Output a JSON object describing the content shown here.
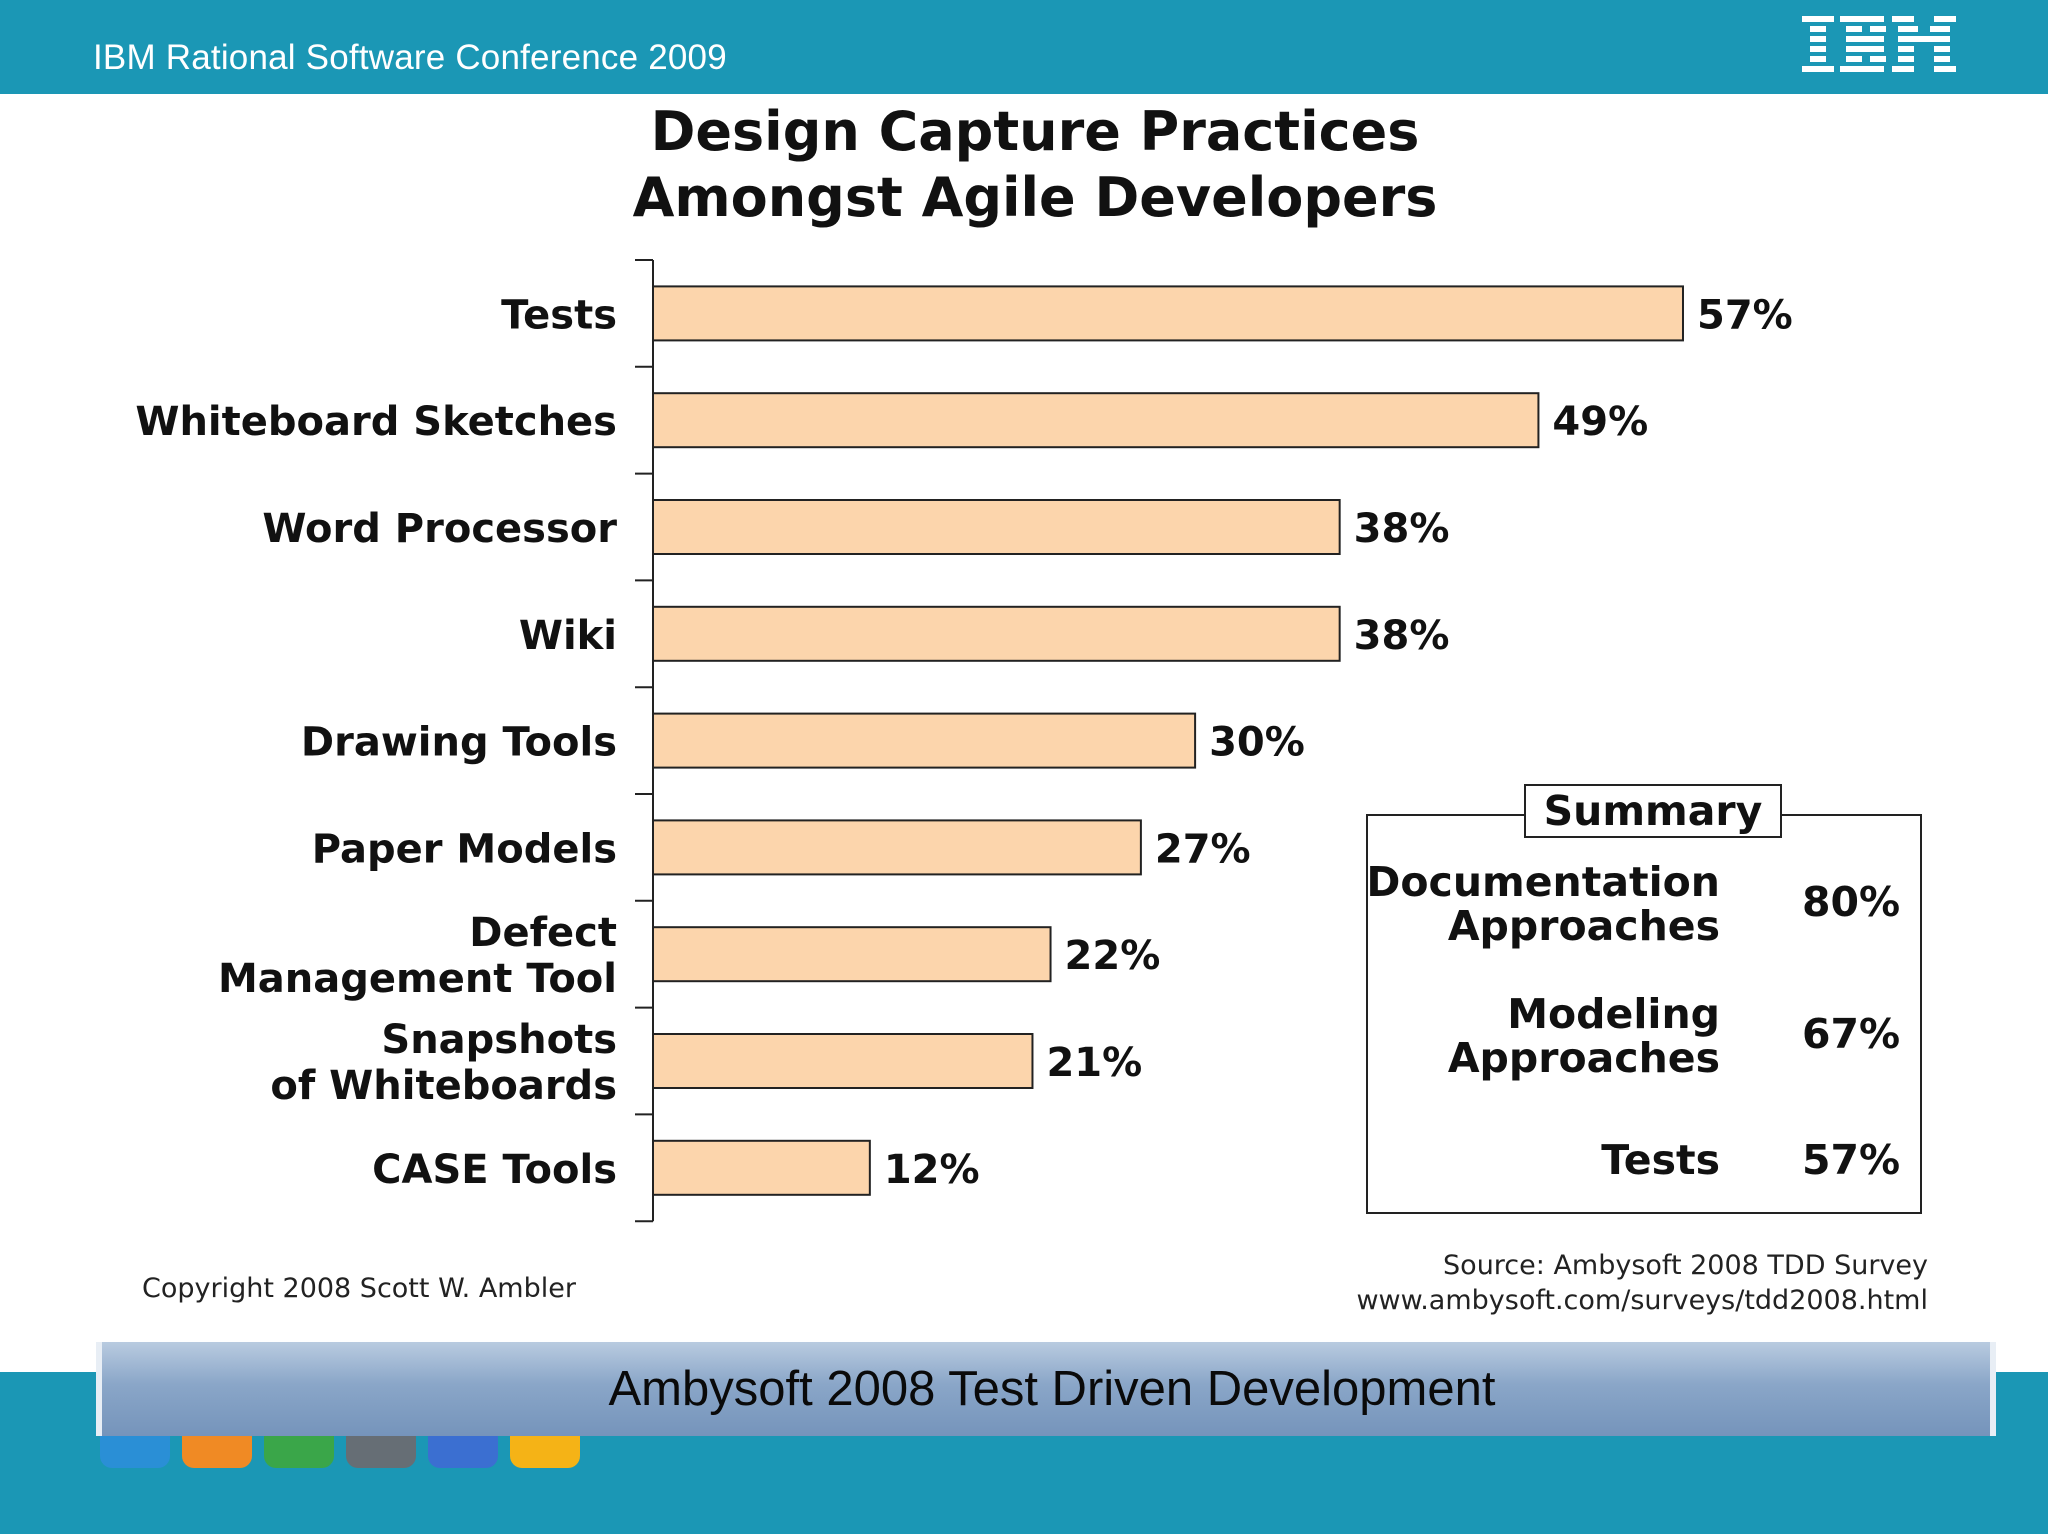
{
  "header": {
    "conference_title": "IBM Rational Software Conference 2009",
    "logo_text": "IBM"
  },
  "chart_data": {
    "type": "bar",
    "orientation": "horizontal",
    "title_lines": [
      "Design Capture Practices",
      "Amongst Agile Developers"
    ],
    "categories": [
      [
        "Tests"
      ],
      [
        "Whiteboard Sketches"
      ],
      [
        "Word Processor"
      ],
      [
        "Wiki"
      ],
      [
        "Drawing Tools"
      ],
      [
        "Paper Models"
      ],
      [
        "Defect",
        "Management Tool"
      ],
      [
        "Snapshots",
        "of Whiteboards"
      ],
      [
        "CASE Tools"
      ]
    ],
    "values": [
      57,
      49,
      38,
      38,
      30,
      27,
      22,
      21,
      12
    ],
    "value_labels": [
      "57%",
      "49%",
      "38%",
      "38%",
      "30%",
      "27%",
      "22%",
      "21%",
      "12%"
    ],
    "bar_color": "#fcd5ac",
    "grid": false
  },
  "summary": {
    "title": "Summary",
    "rows": [
      {
        "label": "Documentation\nApproaches",
        "value": "80%"
      },
      {
        "label": "Modeling\nApproaches",
        "value": "67%"
      },
      {
        "label": "Tests",
        "value": "57%"
      }
    ]
  },
  "copyright": "Copyright 2008 Scott W. Ambler",
  "source_lines": [
    "Source: Ambysoft 2008 TDD Survey",
    "www.ambysoft.com/surveys/tdd2008.html"
  ],
  "footer": {
    "banner_text": "Ambysoft 2008 Test Driven Development"
  },
  "colors": {
    "header_bar": "#1b97b5",
    "bar_fill": "#fcd5ac",
    "footer_gradient_top": "#b9cbe0",
    "footer_gradient_bottom": "#7594bb"
  }
}
